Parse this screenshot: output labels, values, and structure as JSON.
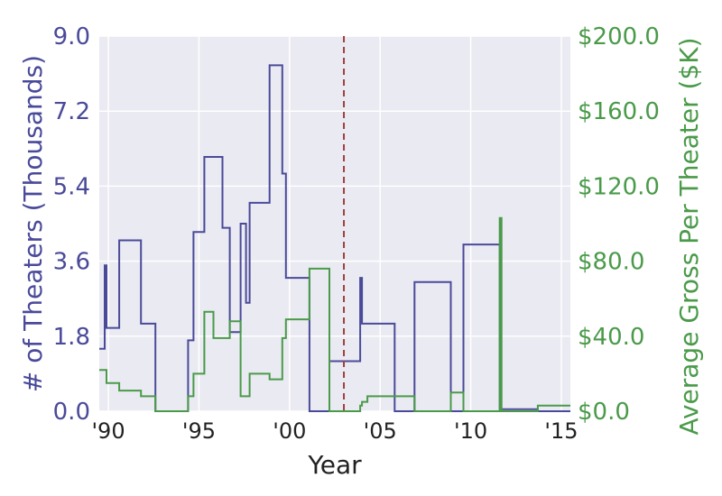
{
  "chart_data": {
    "type": "line",
    "style": "step",
    "xlabel": "Year",
    "ylabel": "# of Theaters (Thousands)",
    "y2label": "Average Gross Per Theater ($K)",
    "xlim": [
      1989.5,
      2015.5
    ],
    "ylim": [
      0,
      9
    ],
    "y2lim": [
      0,
      200
    ],
    "x_ticks": [
      1990,
      1995,
      2000,
      2005,
      2010,
      2015
    ],
    "x_tick_labels": [
      "'90",
      "'95",
      "'00",
      "'05",
      "'10",
      "'15"
    ],
    "y_ticks": [
      0,
      1.8,
      3.6,
      5.4,
      7.2,
      9.0
    ],
    "y_tick_labels": [
      "0.0",
      "1.8",
      "3.6",
      "5.4",
      "7.2",
      "9.0"
    ],
    "y2_ticks": [
      0,
      40,
      80,
      120,
      160,
      200
    ],
    "y2_tick_labels": [
      "$0.0",
      "$40.0",
      "$80.0",
      "$120.0",
      "$160.0",
      "$200.0"
    ],
    "grid": true,
    "reference_line": {
      "x": 2003.0,
      "color": "#a04040",
      "style": "dashed"
    },
    "colors": {
      "theaters": "#4a4a9a",
      "gross": "#4a9a4a",
      "background": "#eaeaf2",
      "grid": "#ffffff"
    },
    "series": [
      {
        "axis": "left",
        "x": [
          1989.5,
          1989.8,
          1989.8,
          1989.9,
          1989.9,
          1990.6,
          1990.6,
          1991.8,
          1991.8,
          1992.6,
          1992.6,
          1994.4,
          1994.4,
          1994.7,
          1994.7,
          1995.3,
          1995.3,
          1996.3,
          1996.3,
          1996.7,
          1996.7,
          1997.3,
          1997.3,
          1997.6,
          1997.6,
          1997.8,
          1997.8,
          1998.9,
          1998.9,
          1999.6,
          1999.6,
          1999.8,
          1999.8,
          2001.1,
          2001.1,
          2002.2,
          2002.2,
          2003.9,
          2003.9,
          2004.0,
          2004.0,
          2005.8,
          2005.8,
          2006.9,
          2006.9,
          2008.9,
          2008.9,
          2009.6,
          2009.6,
          2011.6,
          2011.6,
          2013.7,
          2013.7,
          2015.5
        ],
        "y": [
          1.5,
          1.5,
          3.5,
          3.5,
          2.0,
          2.0,
          4.1,
          4.1,
          2.1,
          2.1,
          0.0,
          0.0,
          1.7,
          1.7,
          4.3,
          4.3,
          6.1,
          6.1,
          4.4,
          4.4,
          1.9,
          1.9,
          4.5,
          4.5,
          2.6,
          2.6,
          5.0,
          5.0,
          8.3,
          8.3,
          5.7,
          5.7,
          3.2,
          3.2,
          0.0,
          0.0,
          1.2,
          1.2,
          3.2,
          3.2,
          2.1,
          2.1,
          0.0,
          0.0,
          3.1,
          3.1,
          0.0,
          0.0,
          4.0,
          4.0,
          0.05,
          0.05,
          0.0,
          0.0
        ]
      },
      {
        "axis": "right",
        "x": [
          1989.5,
          1989.9,
          1989.9,
          1990.6,
          1990.6,
          1991.8,
          1991.8,
          1992.6,
          1992.6,
          1994.4,
          1994.4,
          1994.7,
          1994.7,
          1995.3,
          1995.3,
          1995.8,
          1995.8,
          1996.7,
          1996.7,
          1997.3,
          1997.3,
          1997.6,
          1997.6,
          1997.8,
          1997.8,
          1998.9,
          1998.9,
          1999.6,
          1999.6,
          1999.8,
          1999.8,
          2001.1,
          2001.1,
          2002.2,
          2002.2,
          2003.9,
          2003.9,
          2004.0,
          2004.0,
          2004.3,
          2004.3,
          2005.8,
          2005.8,
          2006.9,
          2006.9,
          2008.9,
          2008.9,
          2009.6,
          2009.6,
          2011.6,
          2011.6,
          2011.7,
          2011.7,
          2013.7,
          2013.7,
          2015.5
        ],
        "y": [
          22,
          22,
          15,
          15,
          11,
          11,
          8,
          8,
          0,
          0,
          8,
          8,
          20,
          20,
          53,
          53,
          39,
          39,
          48,
          48,
          8,
          8,
          8,
          8,
          20,
          20,
          17,
          17,
          39,
          39,
          49,
          49,
          76,
          76,
          0,
          0,
          3,
          3,
          5,
          5,
          8,
          8,
          8,
          8,
          0,
          0,
          10,
          10,
          0,
          0,
          103,
          103,
          0,
          0,
          3,
          3
        ]
      }
    ]
  }
}
